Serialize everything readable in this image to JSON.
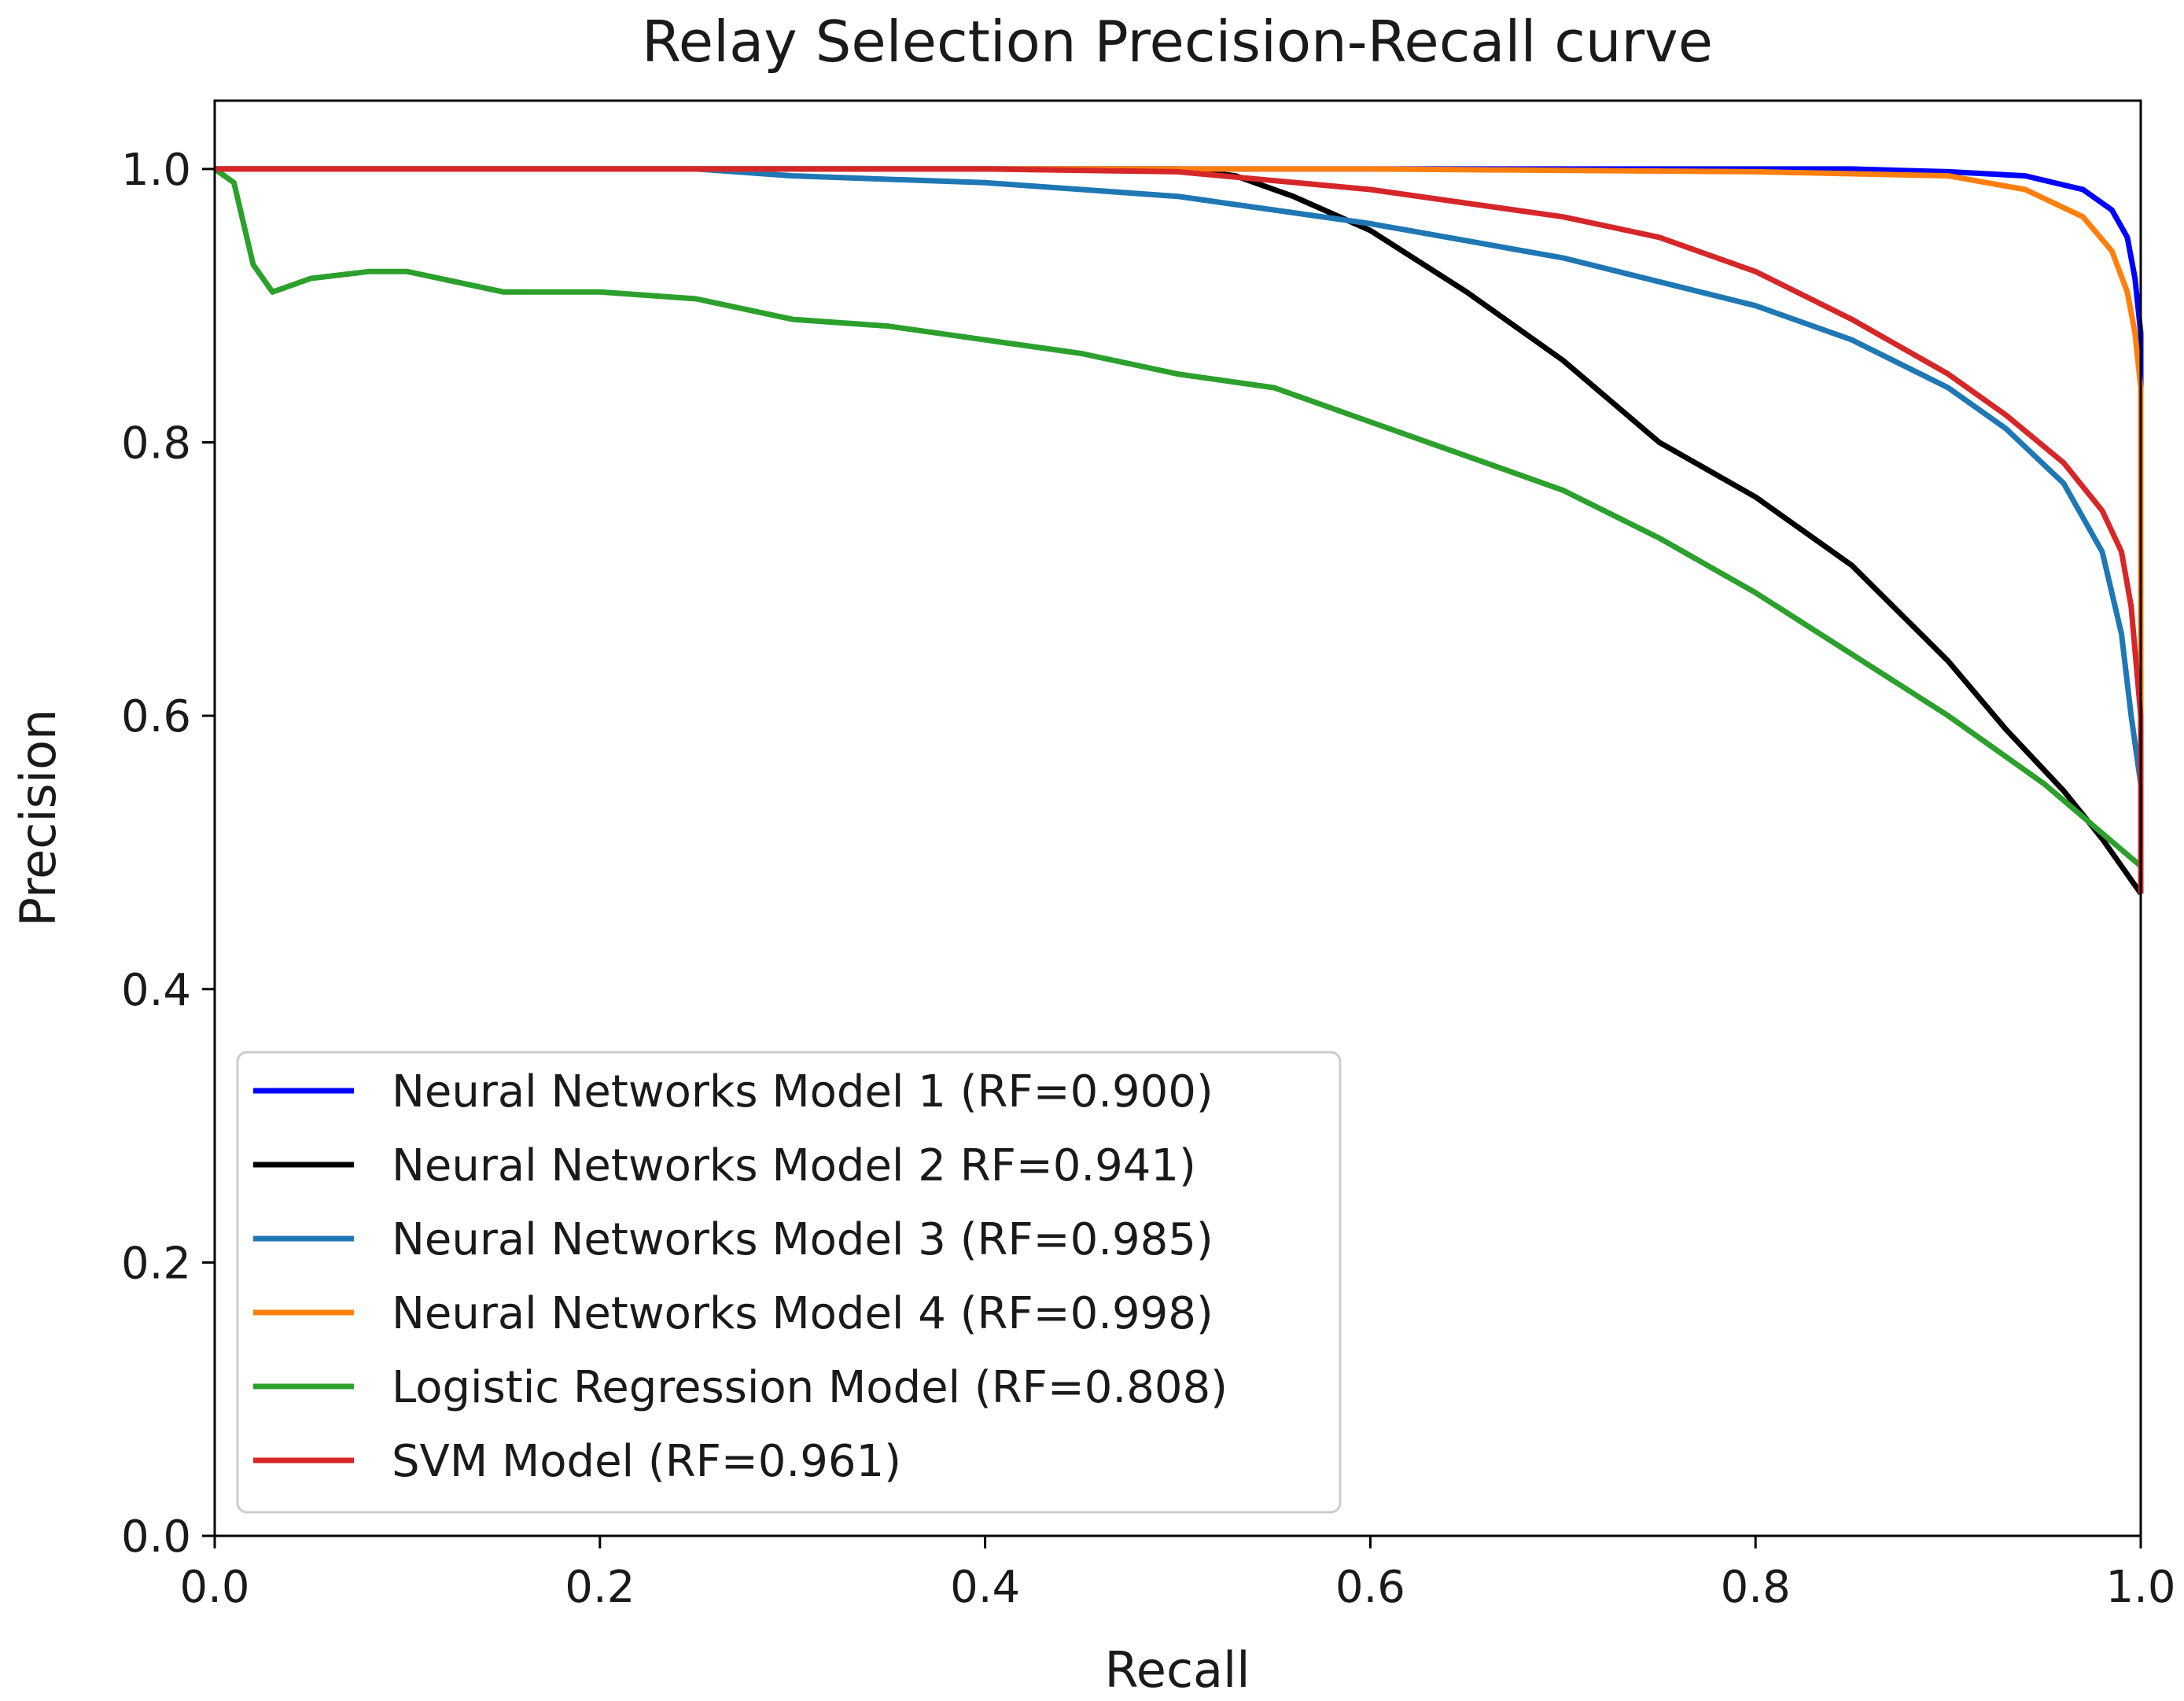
{
  "chart_data": {
    "type": "line",
    "title": "Relay Selection Precision-Recall curve",
    "xlabel": "Recall",
    "ylabel": "Precision",
    "xlim": [
      0.0,
      1.0
    ],
    "ylim": [
      0.0,
      1.05
    ],
    "xticks": [
      "0.0",
      "0.2",
      "0.4",
      "0.6",
      "0.8",
      "1.0"
    ],
    "yticks": [
      "0.0",
      "0.2",
      "0.4",
      "0.6",
      "0.8",
      "1.0"
    ],
    "grid": false,
    "legend_position": "lower-left",
    "series": [
      {
        "name": "Neural Networks Model 1 (RF=0.900)",
        "color": "#0000ff",
        "x": [
          0.0,
          0.2,
          0.5,
          0.7,
          0.85,
          0.9,
          0.94,
          0.97,
          0.985,
          0.993,
          0.997,
          1.0,
          1.0
        ],
        "y": [
          1.0,
          1.0,
          1.0,
          1.0,
          1.0,
          0.998,
          0.995,
          0.985,
          0.97,
          0.95,
          0.92,
          0.88,
          0.47
        ]
      },
      {
        "name": "Neural Networks Model 2 RF=0.941)",
        "color": "#000000",
        "x": [
          0.0,
          0.3,
          0.5,
          0.53,
          0.56,
          0.6,
          0.65,
          0.7,
          0.75,
          0.8,
          0.85,
          0.9,
          0.93,
          0.96,
          0.98,
          1.0
        ],
        "y": [
          1.0,
          1.0,
          1.0,
          0.995,
          0.98,
          0.955,
          0.91,
          0.86,
          0.8,
          0.76,
          0.71,
          0.64,
          0.59,
          0.545,
          0.51,
          0.47
        ]
      },
      {
        "name": "Neural Networks Model 3 (RF=0.985)",
        "color": "#1f77b4",
        "x": [
          0.0,
          0.15,
          0.25,
          0.3,
          0.4,
          0.5,
          0.6,
          0.7,
          0.8,
          0.85,
          0.9,
          0.93,
          0.96,
          0.98,
          0.99,
          0.995,
          1.0,
          1.0
        ],
        "y": [
          1.0,
          1.0,
          1.0,
          0.995,
          0.99,
          0.98,
          0.96,
          0.935,
          0.9,
          0.875,
          0.84,
          0.81,
          0.77,
          0.72,
          0.66,
          0.6,
          0.55,
          0.47
        ]
      },
      {
        "name": "Neural Networks Model 4 (RF=0.998)",
        "color": "#ff7f0e",
        "x": [
          0.0,
          0.3,
          0.6,
          0.8,
          0.9,
          0.94,
          0.97,
          0.985,
          0.993,
          0.997,
          1.0,
          1.0
        ],
        "y": [
          1.0,
          1.0,
          1.0,
          0.998,
          0.995,
          0.985,
          0.965,
          0.94,
          0.91,
          0.88,
          0.84,
          0.47
        ]
      },
      {
        "name": "Logistic Regression Model (RF=0.808)",
        "color": "#2ca02c",
        "x": [
          0.0,
          0.01,
          0.015,
          0.02,
          0.03,
          0.05,
          0.08,
          0.1,
          0.15,
          0.2,
          0.25,
          0.3,
          0.35,
          0.4,
          0.45,
          0.5,
          0.55,
          0.6,
          0.65,
          0.7,
          0.75,
          0.8,
          0.85,
          0.9,
          0.95,
          1.0
        ],
        "y": [
          1.0,
          0.99,
          0.96,
          0.93,
          0.91,
          0.92,
          0.925,
          0.925,
          0.91,
          0.91,
          0.905,
          0.89,
          0.885,
          0.875,
          0.865,
          0.85,
          0.84,
          0.815,
          0.79,
          0.765,
          0.73,
          0.69,
          0.645,
          0.6,
          0.55,
          0.49
        ]
      },
      {
        "name": "SVM Model (RF=0.961)",
        "color": "#d62728",
        "x": [
          0.0,
          0.4,
          0.5,
          0.6,
          0.65,
          0.7,
          0.75,
          0.8,
          0.85,
          0.9,
          0.93,
          0.96,
          0.98,
          0.99,
          0.995,
          1.0,
          1.0
        ],
        "y": [
          1.0,
          1.0,
          0.998,
          0.985,
          0.975,
          0.965,
          0.95,
          0.925,
          0.89,
          0.85,
          0.82,
          0.785,
          0.75,
          0.72,
          0.68,
          0.6,
          0.47
        ]
      }
    ]
  }
}
